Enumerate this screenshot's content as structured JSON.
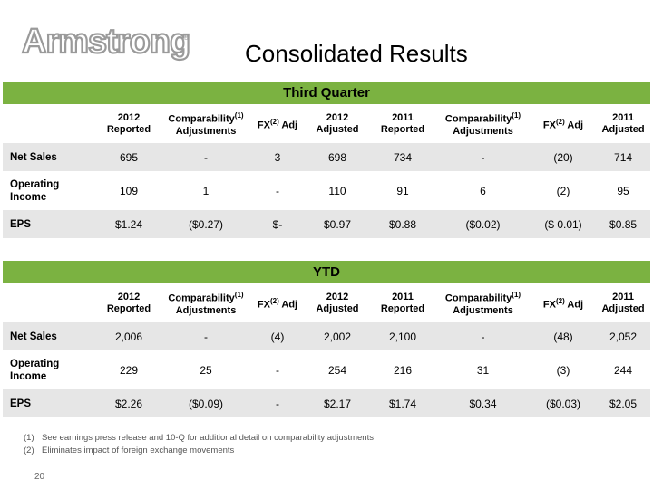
{
  "logo": {
    "text": "Armstrong",
    "mark": "®"
  },
  "title": "Consolidated Results",
  "tables": {
    "q3": {
      "title": "Third Quarter",
      "rows": [
        {
          "label": "Net Sales",
          "values": [
            "695",
            "-",
            "3",
            "698",
            "734",
            "-",
            "(20)",
            "714"
          ]
        },
        {
          "label": "Operating Income",
          "values": [
            "109",
            "1",
            "-",
            "110",
            "91",
            "6",
            "(2)",
            "95"
          ]
        },
        {
          "label": "EPS",
          "values": [
            "$1.24",
            "($0.27)",
            "$-",
            "$0.97",
            "$0.88",
            "($0.02)",
            "($ 0.01)",
            "$0.85"
          ]
        }
      ]
    },
    "ytd": {
      "title": "YTD",
      "rows": [
        {
          "label": "Net Sales",
          "values": [
            "2,006",
            "-",
            "(4)",
            "2,002",
            "2,100",
            "-",
            "(48)",
            "2,052"
          ]
        },
        {
          "label": "Operating Income",
          "values": [
            "229",
            "25",
            "-",
            "254",
            "216",
            "31",
            "(3)",
            "244"
          ]
        },
        {
          "label": "EPS",
          "values": [
            "$2.26",
            "($0.09)",
            "-",
            "$2.17",
            "$1.74",
            "$0.34",
            "($0.03)",
            "$2.05"
          ]
        }
      ]
    }
  },
  "columns": {
    "reported_2012": "2012 Reported",
    "comparability": "Comparability",
    "comparability_sup": "(1)",
    "adjustments": "Adjustments",
    "fx": "FX",
    "fx_sup": "(2)",
    "adj": " Adj",
    "adjusted_2012": "2012 Adjusted",
    "reported_2011": "2011 Reported",
    "adjusted_2011": "2011 Adjusted"
  },
  "footnotes": [
    {
      "num": "(1)",
      "text": "See earnings press release and 10-Q for additional detail on comparability adjustments"
    },
    {
      "num": "(2)",
      "text": "Eliminates impact of foreign exchange movements"
    }
  ],
  "page_number": "20",
  "colors": {
    "section_header": "#7bb241",
    "row_shade": "#e6e6e6",
    "logo_gray": "#9a9a9a"
  }
}
